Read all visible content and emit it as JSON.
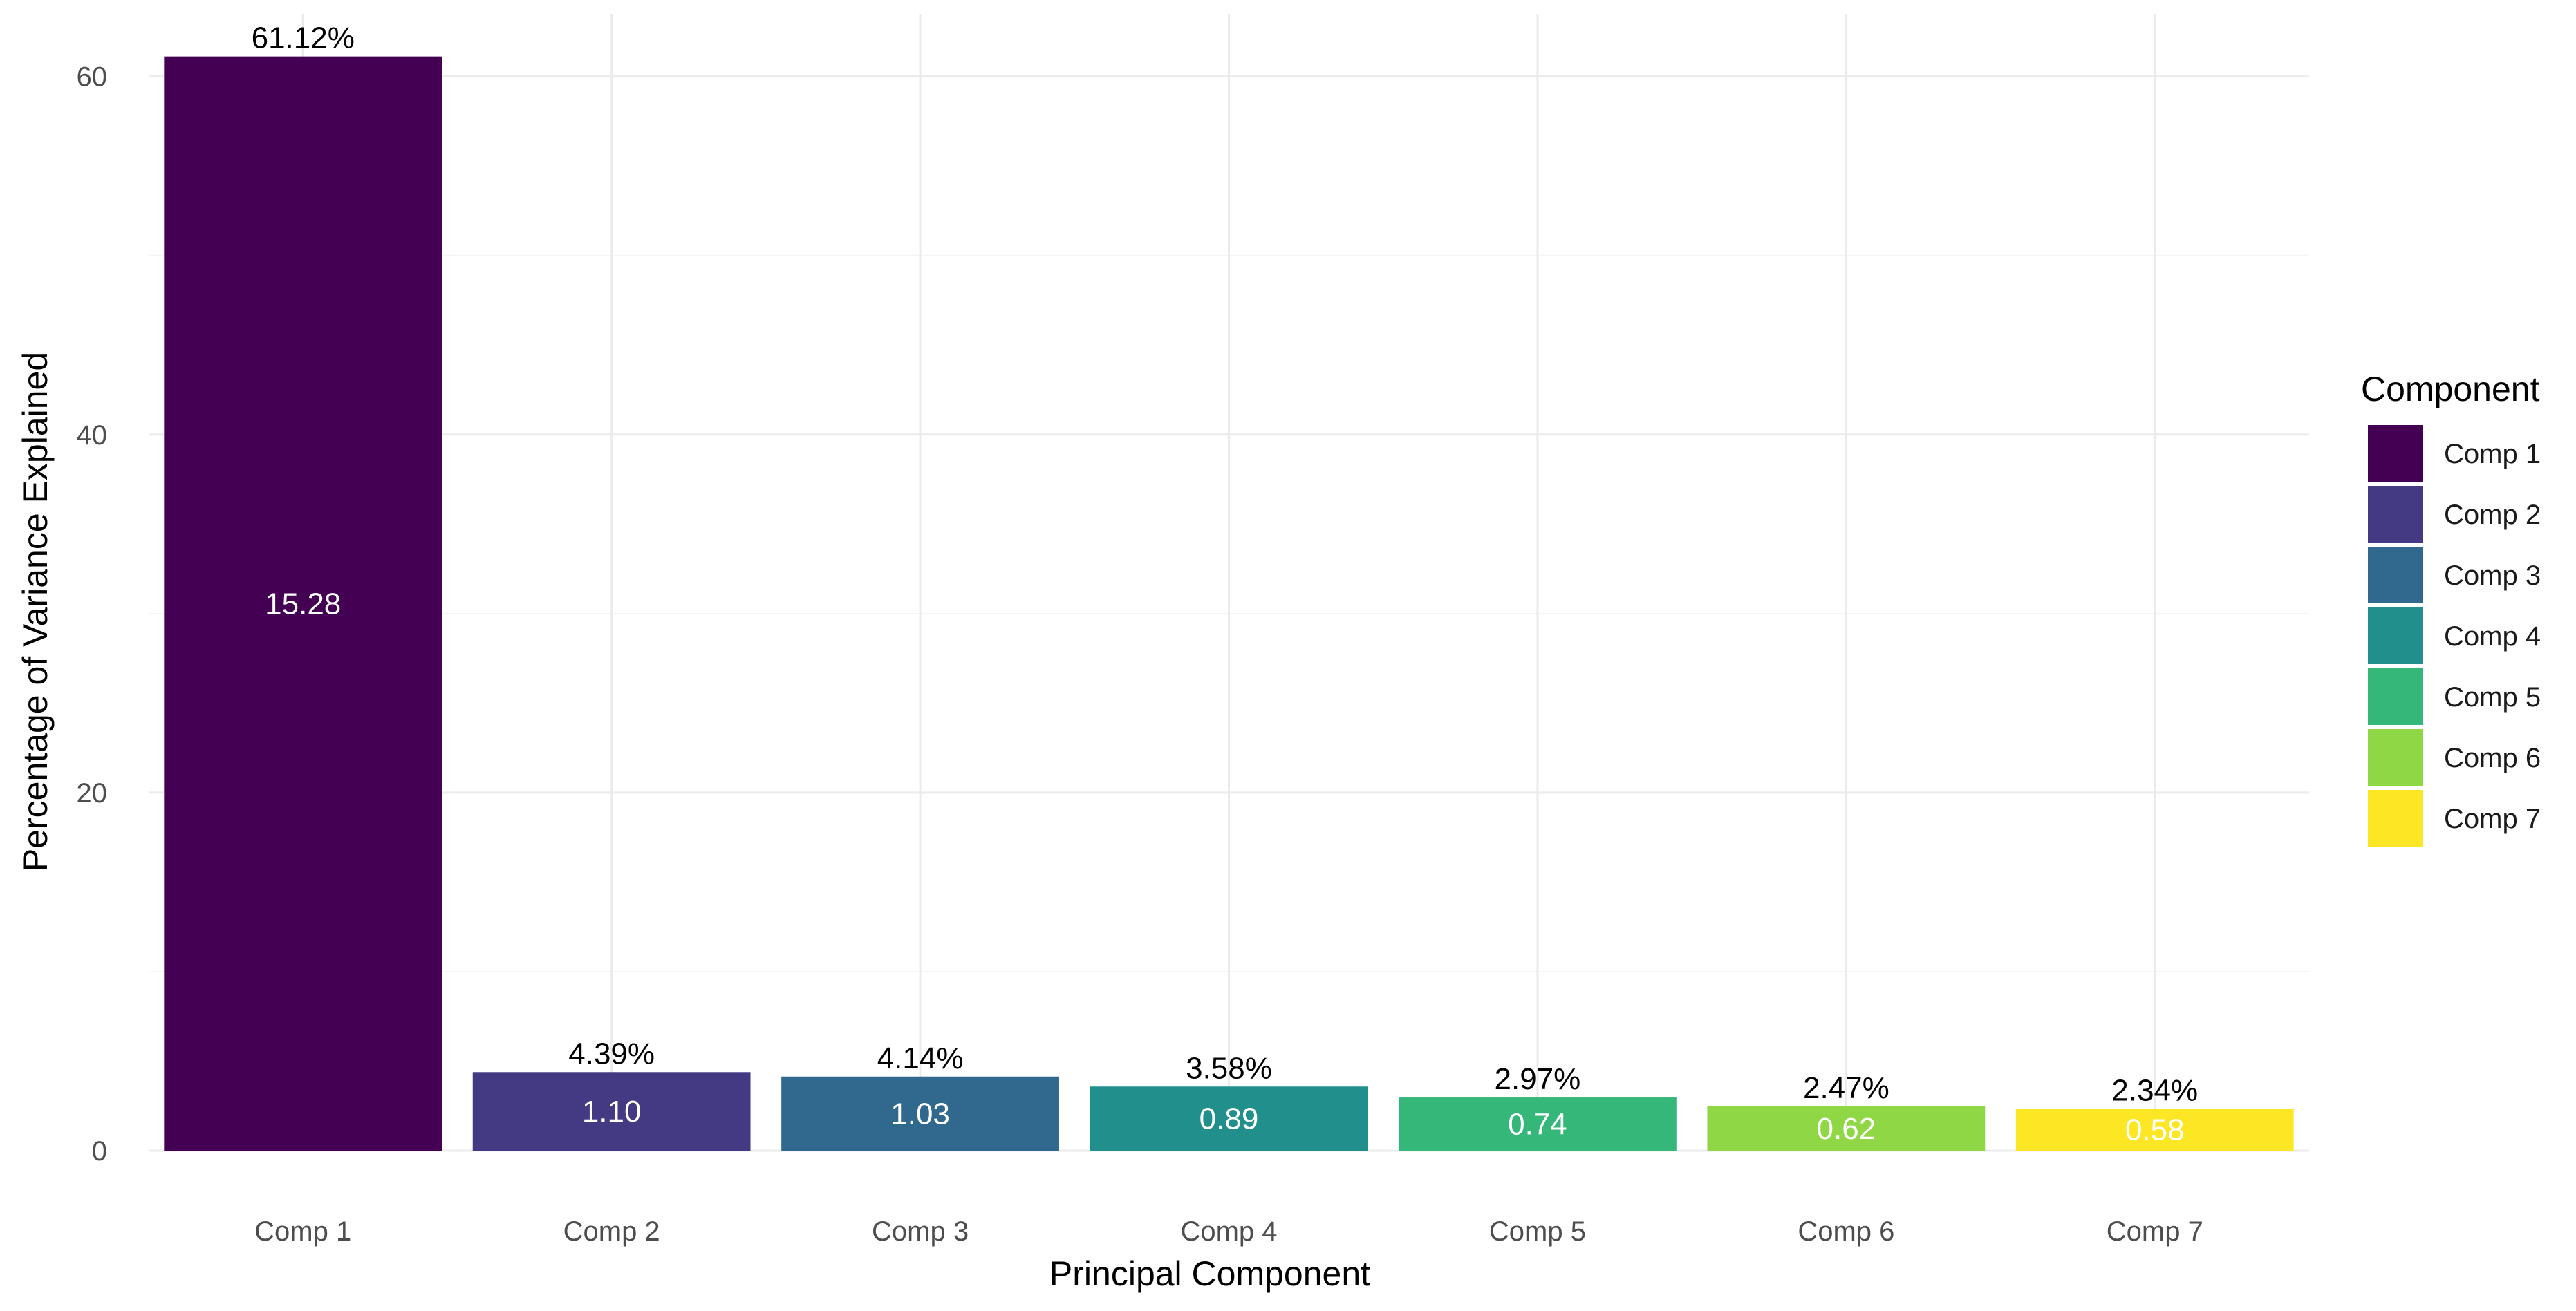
{
  "chart_data": {
    "type": "bar",
    "title": "",
    "xlabel": "Principal Component",
    "ylabel": "Percentage of Variance Explained",
    "ylim": [
      0,
      63.5
    ],
    "yticks": [
      0,
      20,
      40,
      60
    ],
    "grid": true,
    "categories": [
      "Comp 1",
      "Comp 2",
      "Comp 3",
      "Comp 4",
      "Comp 5",
      "Comp 6",
      "Comp 7"
    ],
    "values": [
      61.12,
      4.39,
      4.14,
      3.58,
      2.97,
      2.47,
      2.34
    ],
    "top_labels": [
      "61.12%",
      "4.39%",
      "4.14%",
      "3.58%",
      "2.97%",
      "2.47%",
      "2.34%"
    ],
    "inner_labels": [
      "15.28",
      "1.10",
      "1.03",
      "0.89",
      "0.74",
      "0.62",
      "0.58"
    ],
    "colors": [
      "#440154",
      "#443A83",
      "#31688E",
      "#21908C",
      "#35B779",
      "#8FD744",
      "#FDE725"
    ],
    "legend": {
      "title": "Component",
      "position": "right",
      "entries": [
        "Comp 1",
        "Comp 2",
        "Comp 3",
        "Comp 4",
        "Comp 5",
        "Comp 6",
        "Comp 7"
      ]
    }
  }
}
